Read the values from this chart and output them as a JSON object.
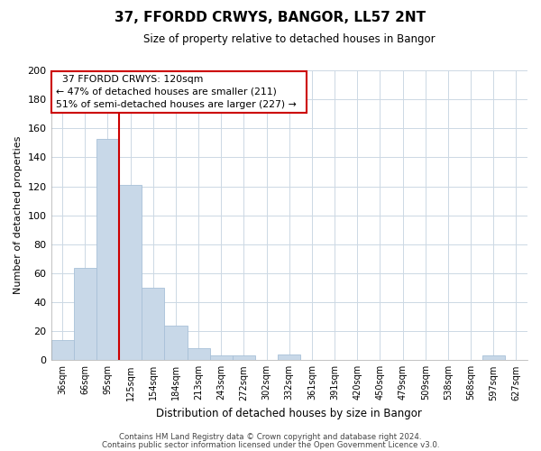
{
  "title": "37, FFORDD CRWYS, BANGOR, LL57 2NT",
  "subtitle": "Size of property relative to detached houses in Bangor",
  "xlabel": "Distribution of detached houses by size in Bangor",
  "ylabel": "Number of detached properties",
  "bar_labels": [
    "36sqm",
    "66sqm",
    "95sqm",
    "125sqm",
    "154sqm",
    "184sqm",
    "213sqm",
    "243sqm",
    "272sqm",
    "302sqm",
    "332sqm",
    "361sqm",
    "391sqm",
    "420sqm",
    "450sqm",
    "479sqm",
    "509sqm",
    "538sqm",
    "568sqm",
    "597sqm",
    "627sqm"
  ],
  "bar_values": [
    14,
    64,
    153,
    121,
    50,
    24,
    8,
    3,
    3,
    0,
    4,
    0,
    0,
    0,
    0,
    0,
    0,
    0,
    0,
    3,
    0
  ],
  "bar_color": "#c8d8e8",
  "bar_edge_color": "#a8c0d8",
  "vline_color": "#cc0000",
  "ylim": [
    0,
    200
  ],
  "yticks": [
    0,
    20,
    40,
    60,
    80,
    100,
    120,
    140,
    160,
    180,
    200
  ],
  "annotation_title": "37 FFORDD CRWYS: 120sqm",
  "annotation_line1": "← 47% of detached houses are smaller (211)",
  "annotation_line2": "51% of semi-detached houses are larger (227) →",
  "footer_line1": "Contains HM Land Registry data © Crown copyright and database right 2024.",
  "footer_line2": "Contains public sector information licensed under the Open Government Licence v3.0.",
  "background_color": "#ffffff",
  "grid_color": "#ccd8e4"
}
